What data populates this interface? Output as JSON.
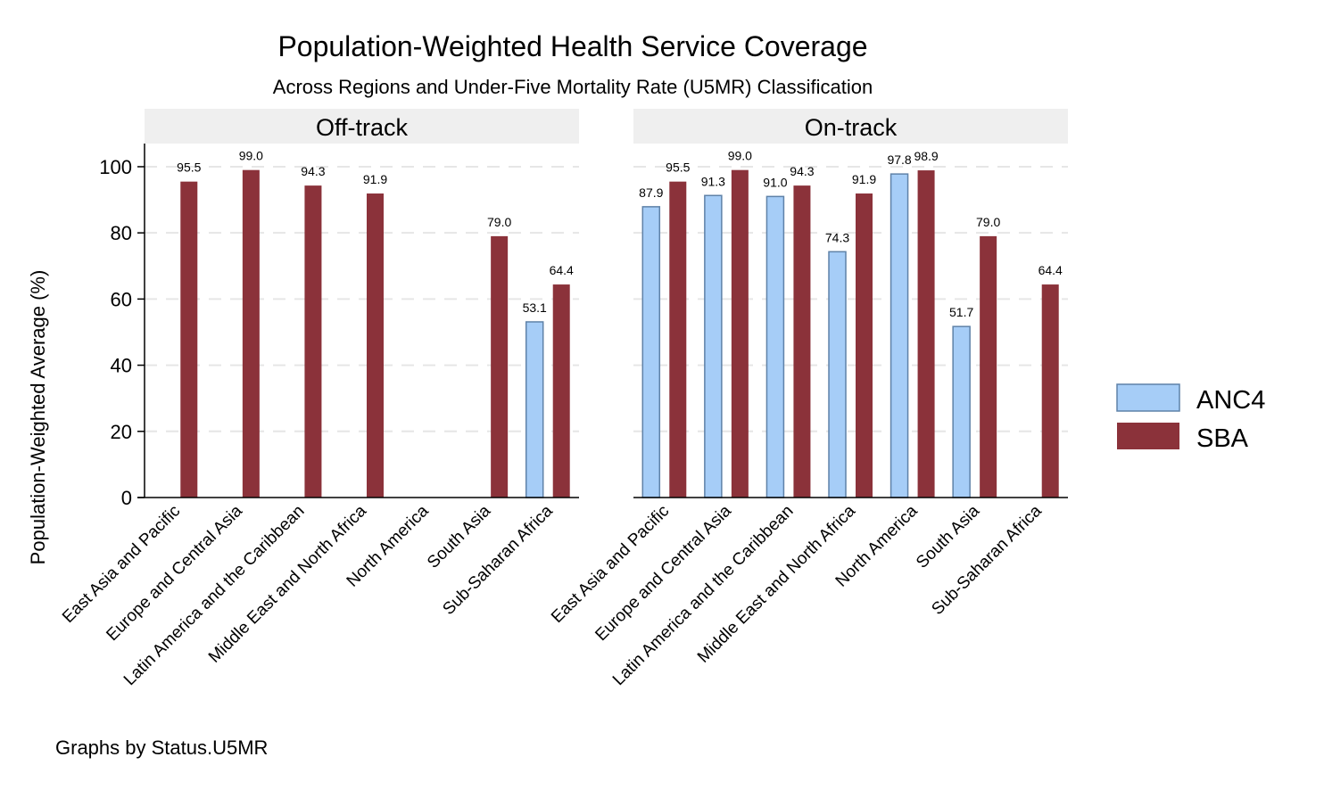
{
  "chart_data": {
    "type": "bar",
    "title": "Population-Weighted Health Service Coverage",
    "subtitle": "Across Regions and Under-Five Mortality Rate (U5MR) Classification",
    "ylabel": "Population-Weighted Average (%)",
    "ylim": [
      0,
      107
    ],
    "yticks": [
      "0",
      "20",
      "40",
      "60",
      "80",
      "100"
    ],
    "grid": true,
    "legend_position": "right",
    "note": "Graphs by Status.U5MR",
    "colors": {
      "ANC4": "#a6cdf7",
      "ANC4_border": "#5f82a8",
      "SBA": "#8b323a",
      "panel_header": "#efefef"
    },
    "categories": [
      "East Asia and Pacific",
      "Europe and Central Asia",
      "Latin America and the Caribbean",
      "Middle East and North Africa",
      "North America",
      "South Asia",
      "Sub-Saharan Africa"
    ],
    "legend": [
      {
        "key": "ANC4",
        "label": "ANC4"
      },
      {
        "key": "SBA",
        "label": "SBA"
      }
    ],
    "panels": [
      {
        "title": "Off-track",
        "series": [
          {
            "name": "ANC4",
            "values": [
              null,
              null,
              null,
              null,
              null,
              null,
              53.1
            ],
            "labels": [
              "",
              "",
              "",
              "",
              "",
              "",
              "53.1"
            ]
          },
          {
            "name": "SBA",
            "values": [
              95.5,
              99.0,
              94.3,
              91.9,
              null,
              79.0,
              64.4
            ],
            "labels": [
              "95.5",
              "99.0",
              "94.3",
              "91.9",
              "",
              "79.0",
              "64.4"
            ]
          }
        ]
      },
      {
        "title": "On-track",
        "series": [
          {
            "name": "ANC4",
            "values": [
              87.9,
              91.3,
              91.0,
              74.3,
              97.8,
              51.7,
              null
            ],
            "labels": [
              "87.9",
              "91.3",
              "91.0",
              "74.3",
              "97.8",
              "51.7",
              ""
            ]
          },
          {
            "name": "SBA",
            "values": [
              95.5,
              99.0,
              94.3,
              91.9,
              98.9,
              79.0,
              64.4
            ],
            "labels": [
              "95.5",
              "99.0",
              "94.3",
              "91.9",
              "98.9",
              "79.0",
              "64.4"
            ]
          }
        ]
      }
    ]
  }
}
